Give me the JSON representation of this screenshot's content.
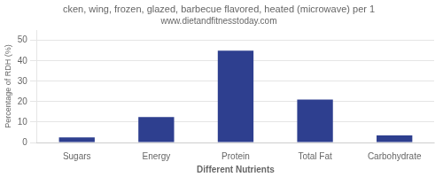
{
  "chart_data": {
    "type": "bar",
    "title": "cken, wing, frozen, glazed, barbecue flavored, heated (microwave) per 1",
    "subtitle": "www.dietandfitnesstoday.com",
    "categories": [
      "Sugars",
      "Energy",
      "Protein",
      "Total Fat",
      "Carbohydrate"
    ],
    "values": [
      2.5,
      12.5,
      45.0,
      21.0,
      3.5
    ],
    "color": "#2e3f8f",
    "xlabel": "Different Nutrients",
    "ylabel": "Percentage of RDH (%)",
    "ylim": [
      0,
      55
    ],
    "yticks": [
      0,
      10,
      20,
      30,
      40,
      50
    ],
    "grid": true
  }
}
